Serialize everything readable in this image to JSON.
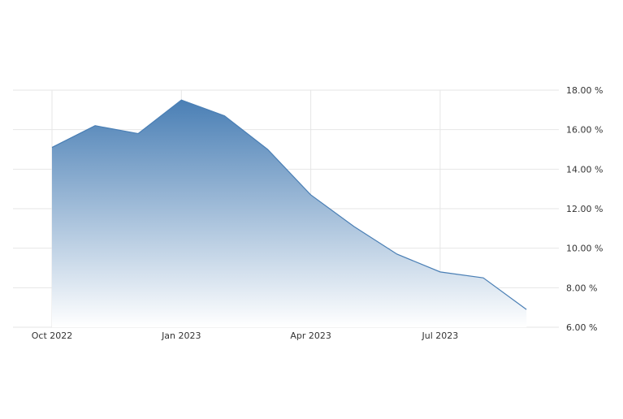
{
  "chart_data": {
    "type": "area",
    "title": "",
    "xlabel": "",
    "ylabel": "",
    "x": [
      "2022-10",
      "2022-11",
      "2022-12",
      "2023-01",
      "2023-02",
      "2023-03",
      "2023-04",
      "2023-05",
      "2023-06",
      "2023-07",
      "2023-08",
      "2023-09"
    ],
    "series": [
      {
        "values": [
          15.1,
          16.2,
          15.8,
          17.5,
          16.7,
          15.0,
          12.7,
          11.1,
          9.7,
          8.8,
          8.5,
          6.9
        ]
      }
    ],
    "x_ticks": [
      {
        "x": "2022-10",
        "label": "Oct 2022"
      },
      {
        "x": "2023-01",
        "label": "Jan 2023"
      },
      {
        "x": "2023-04",
        "label": "Apr 2023"
      },
      {
        "x": "2023-07",
        "label": "Jul 2023"
      }
    ],
    "y_ticks": [
      {
        "value": 18,
        "label": "18.00 %"
      },
      {
        "value": 16,
        "label": "16.00 %"
      },
      {
        "value": 14,
        "label": "14.00 %"
      },
      {
        "value": 12,
        "label": "12.00 %"
      },
      {
        "value": 10,
        "label": "10.00 %"
      },
      {
        "value": 8,
        "label": "8.00 %"
      },
      {
        "value": 6,
        "label": "6.00 %"
      }
    ],
    "ylim": [
      6,
      18
    ],
    "y_axis_side": "right",
    "grid": true,
    "legend": "none",
    "colors": {
      "line": "#4a7fb5",
      "fill_top": "#4a7fb5",
      "fill_bottom": "#ffffff",
      "grid": "#e6e6e6",
      "text": "#333333"
    }
  }
}
